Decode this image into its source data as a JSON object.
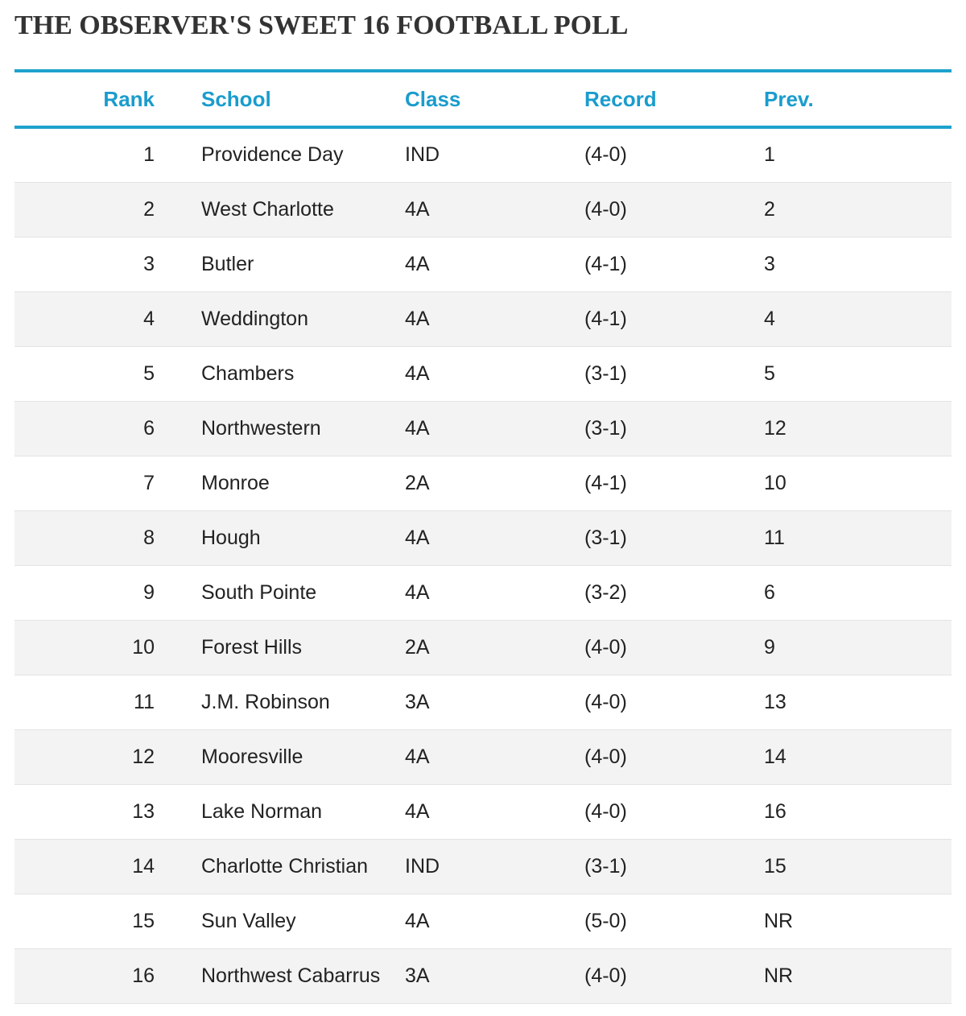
{
  "title": "THE OBSERVER'S SWEET 16 FOOTBALL POLL",
  "columns": {
    "rank": "Rank",
    "school": "School",
    "class": "Class",
    "record": "Record",
    "prev": "Prev."
  },
  "rows": [
    {
      "rank": "1",
      "school": "Providence Day",
      "class": "IND",
      "record": "(4-0)",
      "prev": "1"
    },
    {
      "rank": "2",
      "school": "West Charlotte",
      "class": "4A",
      "record": "(4-0)",
      "prev": "2"
    },
    {
      "rank": "3",
      "school": "Butler",
      "class": "4A",
      "record": "(4-1)",
      "prev": "3"
    },
    {
      "rank": "4",
      "school": "Weddington",
      "class": "4A",
      "record": "(4-1)",
      "prev": "4"
    },
    {
      "rank": "5",
      "school": "Chambers",
      "class": "4A",
      "record": "(3-1)",
      "prev": "5"
    },
    {
      "rank": "6",
      "school": "Northwestern",
      "class": "4A",
      "record": "(3-1)",
      "prev": "12"
    },
    {
      "rank": "7",
      "school": "Monroe",
      "class": "2A",
      "record": "(4-1)",
      "prev": "10"
    },
    {
      "rank": "8",
      "school": "Hough",
      "class": "4A",
      "record": "(3-1)",
      "prev": "11"
    },
    {
      "rank": "9",
      "school": "South Pointe",
      "class": "4A",
      "record": "(3-2)",
      "prev": "6"
    },
    {
      "rank": "10",
      "school": "Forest Hills",
      "class": "2A",
      "record": "(4-0)",
      "prev": "9"
    },
    {
      "rank": "11",
      "school": "J.M. Robinson",
      "class": "3A",
      "record": "(4-0)",
      "prev": "13"
    },
    {
      "rank": "12",
      "school": "Mooresville",
      "class": "4A",
      "record": "(4-0)",
      "prev": "14"
    },
    {
      "rank": "13",
      "school": "Lake Norman",
      "class": "4A",
      "record": "(4-0)",
      "prev": "16"
    },
    {
      "rank": "14",
      "school": "Charlotte Christian",
      "class": "IND",
      "record": "(3-1)",
      "prev": "15"
    },
    {
      "rank": "15",
      "school": "Sun Valley",
      "class": "4A",
      "record": "(5-0)",
      "prev": "NR"
    },
    {
      "rank": "16",
      "school": "Northwest Cabarrus",
      "class": "3A",
      "record": "(4-0)",
      "prev": "NR"
    }
  ],
  "colors": {
    "accent": "#1ea2cc",
    "header_text": "#1a9ccd",
    "row_alt": "#f3f3f3",
    "title": "#333333"
  }
}
